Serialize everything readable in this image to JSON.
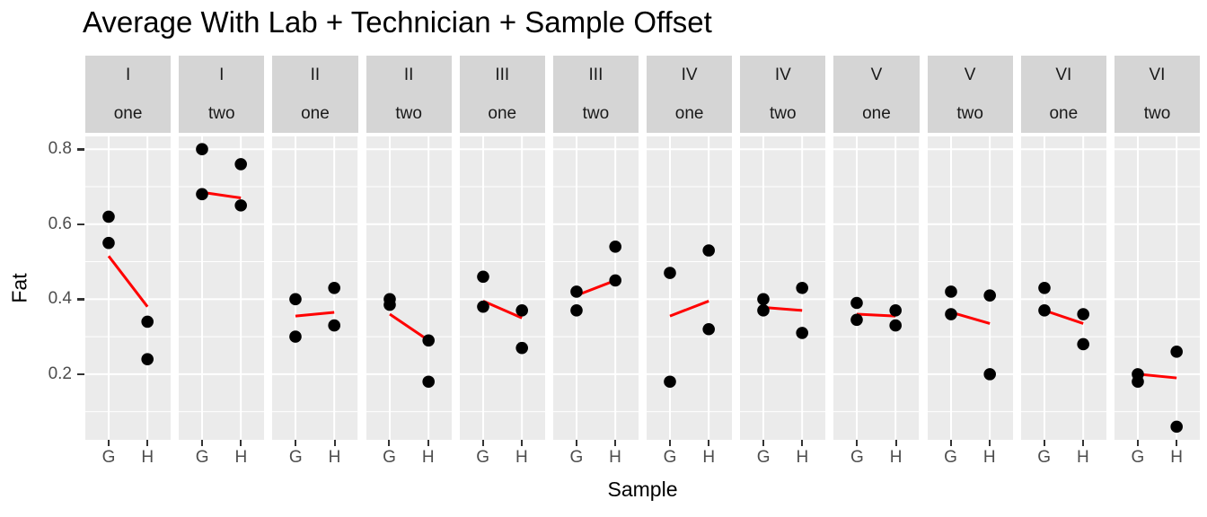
{
  "title": "Average With Lab + Technician + Sample Offset",
  "colors": {
    "panel_background": "#EBEBEB",
    "strip_background": "#D5D5D5",
    "grid_line": "#FFFFFF",
    "point": "#000000",
    "trend_line": "#FF0000",
    "axis_text": "#4D4D4D",
    "tick_mark": "#333333"
  },
  "chart_data": {
    "type": "scatter",
    "title": "Average With Lab + Technician + Sample Offset",
    "xlabel": "Sample",
    "ylabel": "Fat",
    "x_categories": [
      "G",
      "H"
    ],
    "x_positions_pct": [
      27.3,
      72.7
    ],
    "ylim": [
      0.025,
      0.834
    ],
    "y_major_ticks": [
      0.8,
      0.6,
      0.4,
      0.2
    ],
    "y_minor_ticks": [
      0.7,
      0.5,
      0.3,
      0.1
    ],
    "grid": "on",
    "legend": "none",
    "facet_strip_levels": [
      "lab",
      "group"
    ],
    "facets": [
      {
        "lab": "I",
        "group": "one",
        "points_G": [
          0.62,
          0.55
        ],
        "points_H": [
          0.34,
          0.24
        ],
        "trend": [
          0.515,
          0.38
        ]
      },
      {
        "lab": "I",
        "group": "two",
        "points_G": [
          0.8,
          0.68
        ],
        "points_H": [
          0.76,
          0.65
        ],
        "trend": [
          0.685,
          0.67
        ]
      },
      {
        "lab": "II",
        "group": "one",
        "points_G": [
          0.4,
          0.3
        ],
        "points_H": [
          0.43,
          0.33
        ],
        "trend": [
          0.355,
          0.365
        ]
      },
      {
        "lab": "II",
        "group": "two",
        "points_G": [
          0.4,
          0.385
        ],
        "points_H": [
          0.29,
          0.18
        ],
        "trend": [
          0.36,
          0.29
        ]
      },
      {
        "lab": "III",
        "group": "one",
        "points_G": [
          0.46,
          0.38
        ],
        "points_H": [
          0.37,
          0.27
        ],
        "trend": [
          0.395,
          0.35
        ]
      },
      {
        "lab": "III",
        "group": "two",
        "points_G": [
          0.42,
          0.37
        ],
        "points_H": [
          0.54,
          0.45
        ],
        "trend": [
          0.41,
          0.45
        ]
      },
      {
        "lab": "IV",
        "group": "one",
        "points_G": [
          0.47,
          0.18
        ],
        "points_H": [
          0.53,
          0.32
        ],
        "trend": [
          0.355,
          0.395
        ]
      },
      {
        "lab": "IV",
        "group": "two",
        "points_G": [
          0.4,
          0.37
        ],
        "points_H": [
          0.43,
          0.31
        ],
        "trend": [
          0.378,
          0.37
        ]
      },
      {
        "lab": "V",
        "group": "one",
        "points_G": [
          0.39,
          0.345
        ],
        "points_H": [
          0.37,
          0.33
        ],
        "trend": [
          0.36,
          0.355
        ]
      },
      {
        "lab": "V",
        "group": "two",
        "points_G": [
          0.42,
          0.36
        ],
        "points_H": [
          0.41,
          0.2
        ],
        "trend": [
          0.365,
          0.335
        ]
      },
      {
        "lab": "VI",
        "group": "one",
        "points_G": [
          0.43,
          0.37
        ],
        "points_H": [
          0.36,
          0.28
        ],
        "trend": [
          0.37,
          0.335
        ]
      },
      {
        "lab": "VI",
        "group": "two",
        "points_G": [
          0.2,
          0.18
        ],
        "points_H": [
          0.26,
          0.06
        ],
        "trend": [
          0.2,
          0.19
        ]
      }
    ]
  }
}
